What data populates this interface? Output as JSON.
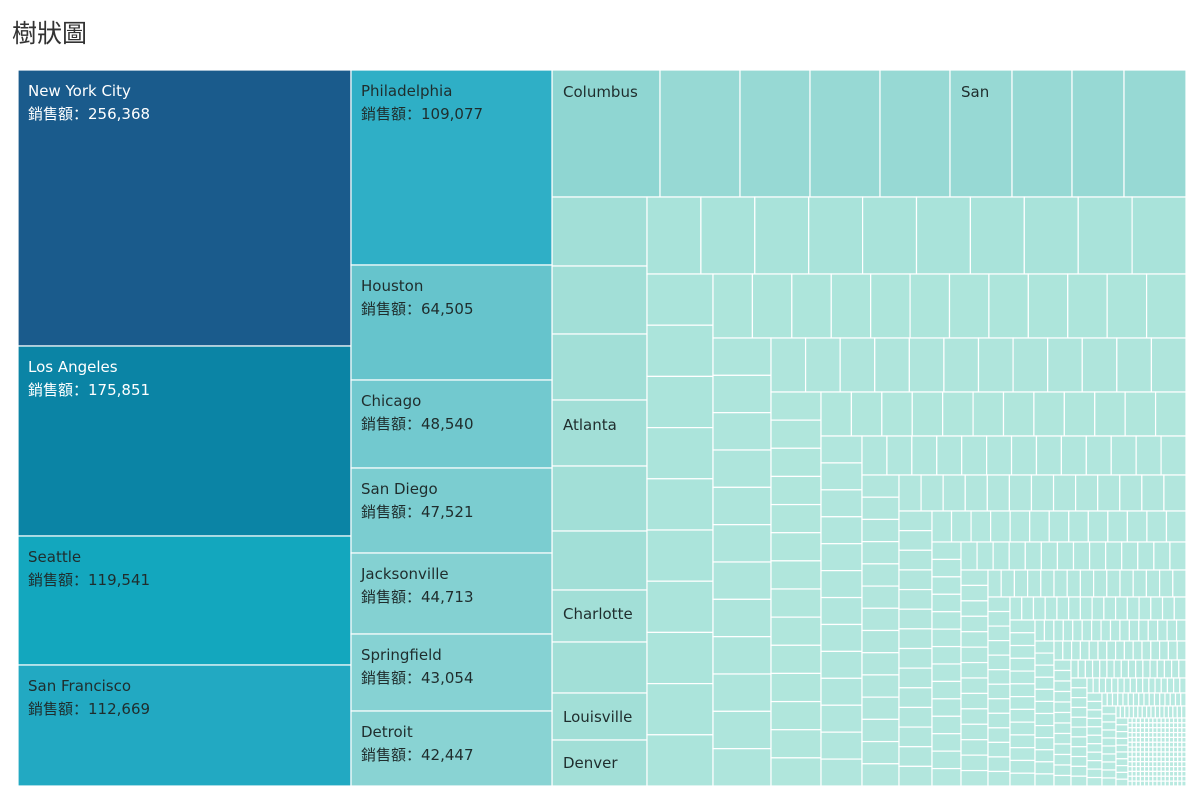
{
  "title": "樹狀圖",
  "chart_data": {
    "type": "treemap",
    "measure_label": "銷售額",
    "separator": "：",
    "labeled_cities": [
      {
        "name": "New York City",
        "value": 256368
      },
      {
        "name": "Los Angeles",
        "value": 175851
      },
      {
        "name": "Seattle",
        "value": 119541
      },
      {
        "name": "San Francisco",
        "value": 112669
      },
      {
        "name": "Philadelphia",
        "value": 109077
      },
      {
        "name": "Houston",
        "value": 64505
      },
      {
        "name": "Chicago",
        "value": 48540
      },
      {
        "name": "San Diego",
        "value": 47521
      },
      {
        "name": "Jacksonville",
        "value": 44713
      },
      {
        "name": "Springfield",
        "value": 43054
      },
      {
        "name": "Detroit",
        "value": 42447
      }
    ],
    "name_only_cities": [
      "Columbus",
      "Atlanta",
      "Charlotte",
      "Louisville",
      "Denver",
      "San"
    ],
    "colors": {
      "New York City": "#1a5b8c",
      "Los Angeles": "#0b84a5",
      "Seattle": "#13a7be",
      "San Francisco": "#22a9c2",
      "Philadelphia": "#2fafc6",
      "Houston": "#66c4cc",
      "Chicago": "#72c9cf",
      "San Diego": "#7bcdd0",
      "Jacksonville": "#84d1d2",
      "Springfield": "#86d2d3",
      "Detroit": "#89d3d3",
      "small_dark": "#8fd6d2",
      "small_mid": "#a6e1d9",
      "small_light": "#b2e6dc",
      "text_dark": "#ffffff",
      "text_light": "#1f2d2d"
    }
  }
}
